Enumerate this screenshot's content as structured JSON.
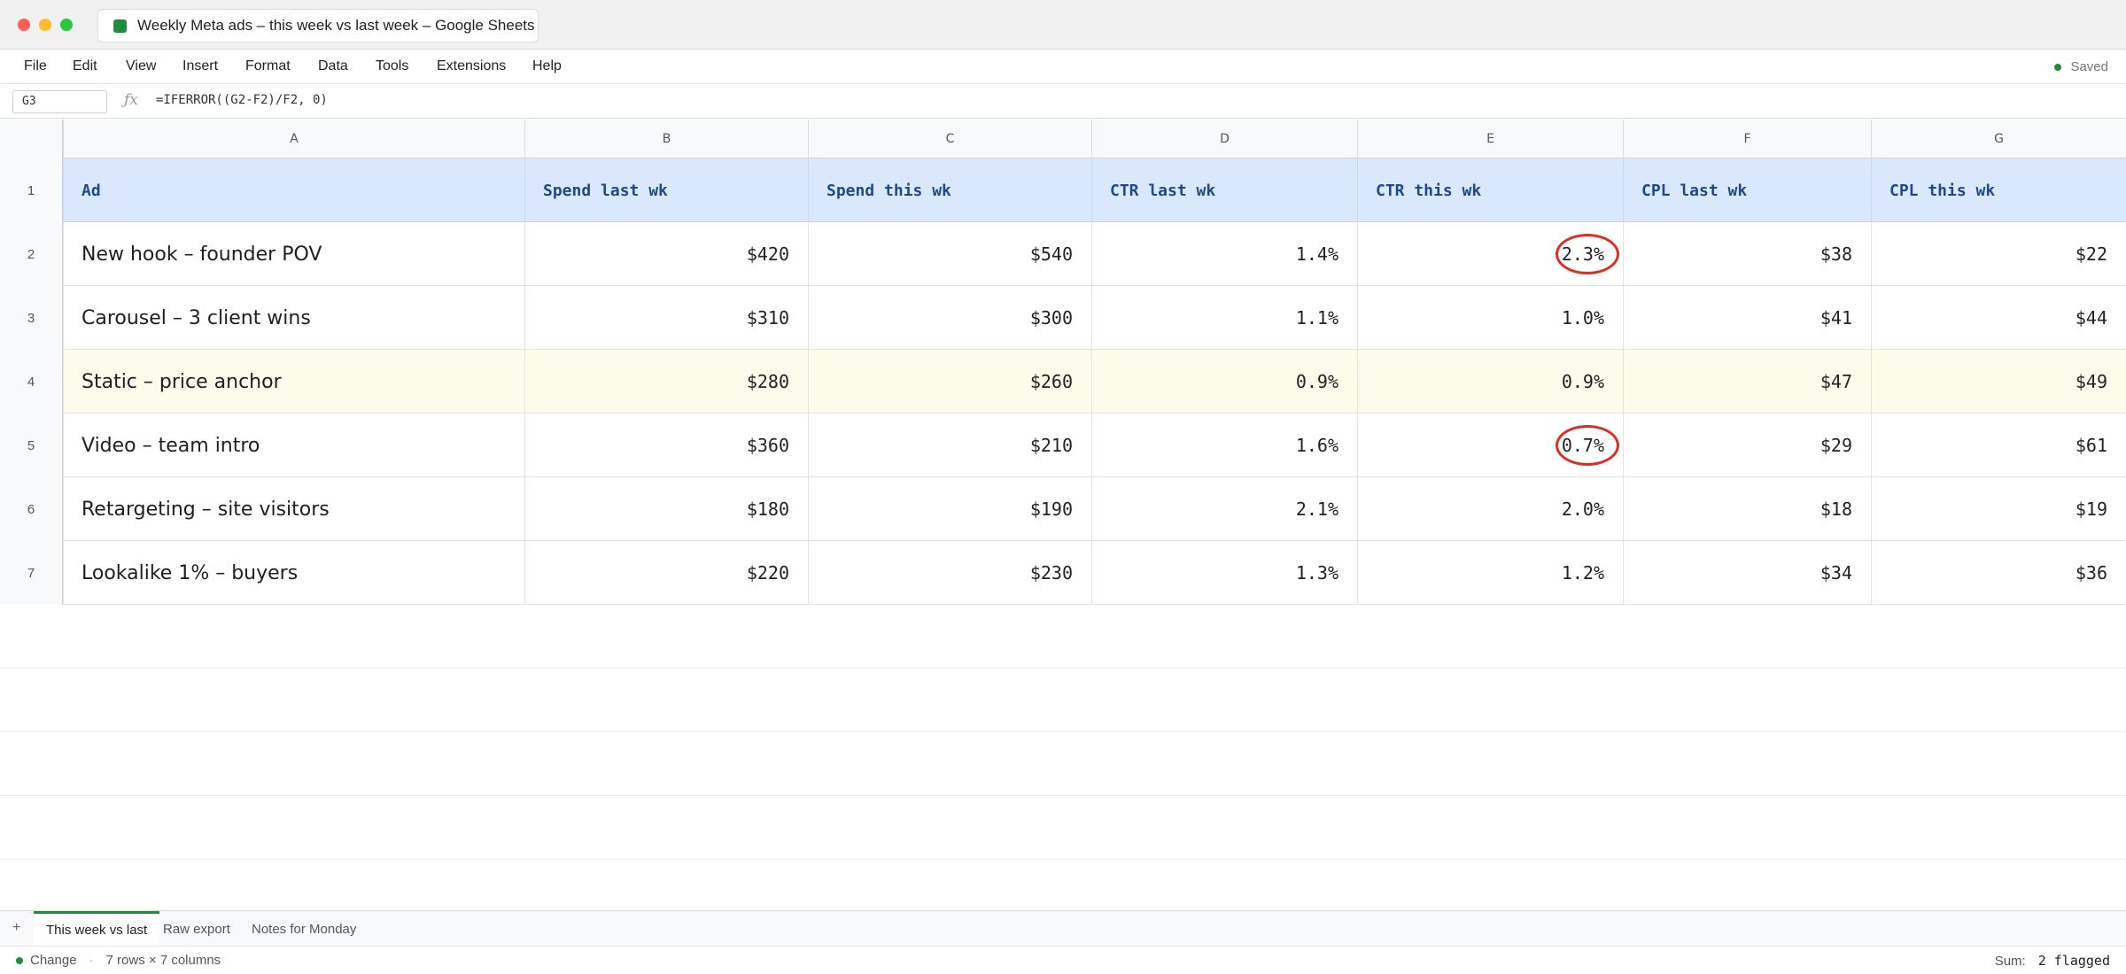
{
  "window": {
    "tab_title": "Weekly Meta ads – this week vs last week – Google Sheets"
  },
  "menu": {
    "items": [
      "File",
      "Edit",
      "View",
      "Insert",
      "Format",
      "Data",
      "Tools",
      "Extensions",
      "Help"
    ],
    "saved_label": "Saved"
  },
  "formula_bar": {
    "cell_ref": "G3",
    "fx_symbol": "ƒx",
    "formula": "=IFERROR((G2-F2)/F2, 0)"
  },
  "columns": [
    "A",
    "B",
    "C",
    "D",
    "E",
    "F",
    "G"
  ],
  "row_numbers": [
    "1",
    "2",
    "3",
    "4",
    "5",
    "6",
    "7"
  ],
  "header": [
    "Ad",
    "Spend last wk",
    "Spend this wk",
    "CTR last wk",
    "CTR this wk",
    "CPL last wk",
    "CPL this wk"
  ],
  "rows": [
    {
      "cells": [
        "New hook – founder POV",
        "$420",
        "$540",
        "1.4%",
        "2.3%",
        "$38",
        "$22"
      ],
      "flagged_col": 4,
      "highlight": false
    },
    {
      "cells": [
        "Carousel – 3 client wins",
        "$310",
        "$300",
        "1.1%",
        "1.0%",
        "$41",
        "$44"
      ],
      "flagged_col": null,
      "highlight": false
    },
    {
      "cells": [
        "Static – price anchor",
        "$280",
        "$260",
        "0.9%",
        "0.9%",
        "$47",
        "$49"
      ],
      "flagged_col": null,
      "highlight": true
    },
    {
      "cells": [
        "Video – team intro",
        "$360",
        "$210",
        "1.6%",
        "0.7%",
        "$29",
        "$61"
      ],
      "flagged_col": 4,
      "highlight": false
    },
    {
      "cells": [
        "Retargeting – site visitors",
        "$180",
        "$190",
        "2.1%",
        "2.0%",
        "$18",
        "$19"
      ],
      "flagged_col": null,
      "highlight": false
    },
    {
      "cells": [
        "Lookalike 1% – buyers",
        "$220",
        "$230",
        "1.3%",
        "1.2%",
        "$34",
        "$36"
      ],
      "flagged_col": null,
      "highlight": false
    }
  ],
  "sheet_tabs": {
    "add_label": "+",
    "tabs": [
      "This week vs last",
      "Raw export",
      "Notes for Monday"
    ],
    "active_index": 0
  },
  "status": {
    "change_label": "Change",
    "separator": "·",
    "dimensions": "7 rows × 7 columns",
    "sum_label": "Sum:",
    "sum_value": "2 flagged"
  },
  "colors": {
    "header_fill": "#d9e8fc",
    "highlight_row_fill": "#fdfbea",
    "flag_ring": "#d93025",
    "accent_green": "#1e8e3e"
  }
}
